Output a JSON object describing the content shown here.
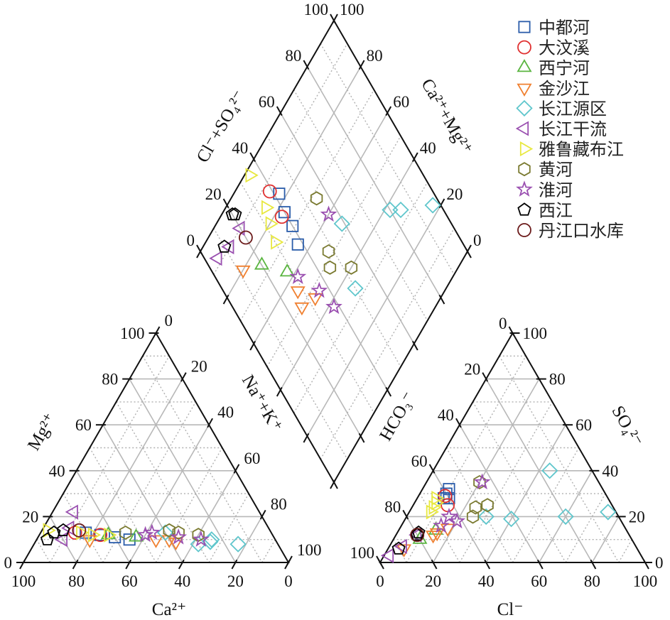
{
  "chart_data": {
    "type": "scatter",
    "subtype": "piper-diagram",
    "tick_values": [
      0,
      20,
      40,
      60,
      80,
      100
    ],
    "axes": {
      "cation_bottom": "Ca²⁺",
      "cation_left": "Mg²⁺",
      "cation_right": "Na⁺+K⁺",
      "anion_bottom": "Cl⁻",
      "anion_left": "HCO₃⁻",
      "anion_right": "SO₄²⁻",
      "diamond_left": "Cl⁻+SO₄²⁻",
      "diamond_right": "Ca²⁺+Mg²⁺"
    },
    "grid": true,
    "legend_position": "top-right",
    "series": [
      {
        "name": "中都河",
        "marker": "square",
        "color": "#2a5caa",
        "cations": [
          [
            65,
            12,
            23
          ],
          [
            55,
            10,
            35
          ],
          [
            70,
            13,
            17
          ],
          [
            60,
            11,
            29
          ]
        ],
        "anions": [
          [
            60,
            30,
            10
          ],
          [
            62,
            28,
            10
          ],
          [
            58,
            32,
            10
          ],
          [
            60,
            28,
            12
          ]
        ]
      },
      {
        "name": "大汶溪",
        "marker": "circle",
        "color": "#e03030",
        "cations": [
          [
            65,
            12,
            23
          ],
          [
            74,
            13,
            13
          ]
        ],
        "anions": [
          [
            62,
            25,
            13
          ],
          [
            61,
            29,
            10
          ]
        ]
      },
      {
        "name": "西宁河",
        "marker": "triangle-up",
        "color": "#5ab540",
        "cations": [
          [
            62,
            12,
            26
          ],
          [
            52,
            11,
            37
          ]
        ],
        "anions": [
          [
            80,
            10,
            10
          ],
          [
            72,
            14,
            14
          ]
        ]
      },
      {
        "name": "金沙江",
        "marker": "triangle-down",
        "color": "#f08030",
        "cations": [
          [
            70,
            10,
            20
          ],
          [
            40,
            10,
            50
          ],
          [
            38,
            9,
            53
          ],
          [
            45,
            10,
            45
          ]
        ],
        "anions": [
          [
            88,
            6,
            6
          ],
          [
            74,
            12,
            14
          ],
          [
            67,
            15,
            18
          ],
          [
            72,
            13,
            15
          ]
        ]
      },
      {
        "name": "长江源区",
        "marker": "diamond",
        "color": "#5fc6cc",
        "cations": [
          [
            24,
            10,
            66
          ],
          [
            15,
            8,
            77
          ],
          [
            30,
            8,
            62
          ],
          [
            40,
            13,
            47
          ],
          [
            25,
            9,
            66
          ]
        ],
        "anions": [
          [
            16,
            40,
            44
          ],
          [
            3,
            22,
            75
          ],
          [
            20,
            20,
            60
          ],
          [
            41,
            19,
            40
          ],
          [
            50,
            20,
            30
          ]
        ]
      },
      {
        "name": "长江干流",
        "marker": "triangle-left",
        "color": "#9a50b0",
        "cations": [
          [
            70,
            22,
            8
          ],
          [
            75,
            15,
            10
          ],
          [
            80,
            10,
            10
          ]
        ],
        "anions": [
          [
            95,
            3,
            2
          ],
          [
            80,
            12,
            8
          ],
          [
            88,
            7,
            5
          ]
        ]
      },
      {
        "name": "雅鲁藏布江",
        "marker": "triangle-right",
        "color": "#e8e840",
        "cations": [
          [
            84,
            14,
            2
          ],
          [
            72,
            13,
            15
          ],
          [
            62,
            12,
            26
          ],
          [
            68,
            12,
            20
          ]
        ],
        "anions": [
          [
            65,
            28,
            7
          ],
          [
            66,
            26,
            8
          ],
          [
            70,
            22,
            8
          ],
          [
            68,
            24,
            8
          ]
        ]
      },
      {
        "name": "黄河",
        "marker": "hexagon",
        "color": "#7a7a30",
        "cations": [
          [
            55,
            13,
            32
          ],
          [
            35,
            13,
            52
          ],
          [
            28,
            12,
            60
          ],
          [
            38,
            14,
            48
          ]
        ],
        "anions": [
          [
            45,
            35,
            20
          ],
          [
            55,
            20,
            25
          ],
          [
            47,
            25,
            28
          ],
          [
            52,
            24,
            24
          ]
        ]
      },
      {
        "name": "淮河",
        "marker": "star",
        "color": "#9a4fb0",
        "cations": [
          [
            48,
            12,
            40
          ],
          [
            36,
            11,
            53
          ],
          [
            28,
            10,
            62
          ],
          [
            45,
            13,
            42
          ]
        ],
        "anions": [
          [
            44,
            35,
            21
          ],
          [
            64,
            20,
            16
          ],
          [
            62,
            18,
            20
          ],
          [
            69,
            16,
            15
          ]
        ]
      },
      {
        "name": "西江",
        "marker": "pentagon",
        "color": "#000000",
        "cations": [
          [
            82,
            13,
            5
          ],
          [
            86,
            10,
            4
          ],
          [
            78,
            14,
            8
          ]
        ],
        "anions": [
          [
            79,
            13,
            8
          ],
          [
            80,
            12,
            8
          ],
          [
            90,
            6,
            4
          ]
        ]
      },
      {
        "name": "丹江口水库",
        "marker": "circle",
        "color": "#6b1a1a",
        "cations": [
          [
            72,
            14,
            14
          ]
        ],
        "anions": [
          [
            80,
            12,
            8
          ]
        ]
      }
    ]
  }
}
